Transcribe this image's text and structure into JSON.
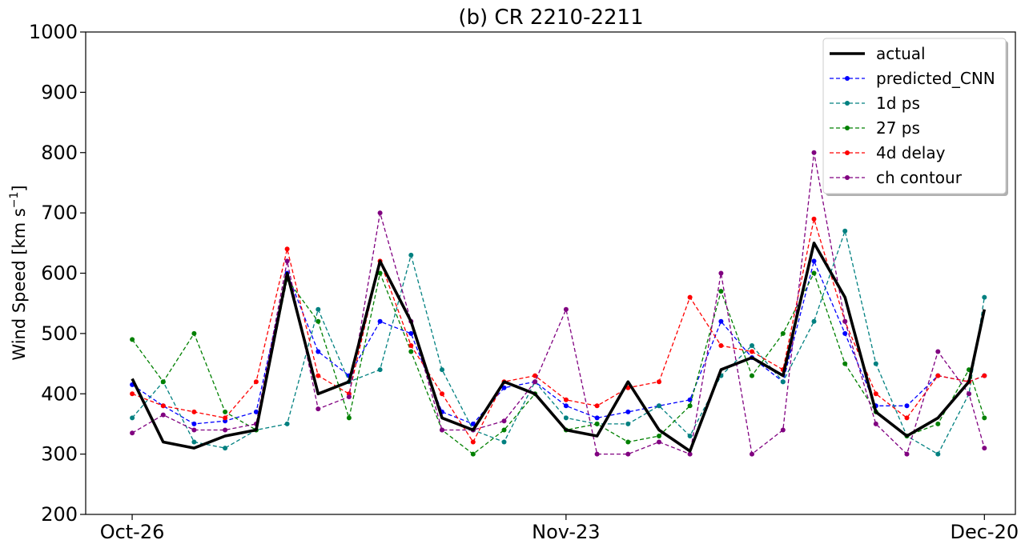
{
  "chart_data": {
    "type": "line",
    "title": "(b) CR 2210-2211",
    "xlabel": "",
    "ylabel": "Wind Speed [km s",
    "ylabel_sup": "−1",
    "ylabel_close": "]",
    "x": [
      "2019-10-26",
      "2019-10-28",
      "2019-10-30",
      "2019-11-01",
      "2019-11-03",
      "2019-11-05",
      "2019-11-07",
      "2019-11-09",
      "2019-11-11",
      "2019-11-13",
      "2019-11-15",
      "2019-11-17",
      "2019-11-19",
      "2019-11-21",
      "2019-11-23",
      "2019-11-25",
      "2019-11-27",
      "2019-11-29",
      "2019-12-01",
      "2019-12-03",
      "2019-12-05",
      "2019-12-07",
      "2019-12-09",
      "2019-12-11",
      "2019-12-13",
      "2019-12-15",
      "2019-12-17",
      "2019-12-19",
      "2019-12-20"
    ],
    "x_ticks": [
      "2019-10-26",
      "2019-11-23",
      "2019-12-20"
    ],
    "x_tick_labels": [
      "Oct-26",
      "Nov-23",
      "Dec-20"
    ],
    "xlim": [
      "2019-10-23",
      "2019-12-22"
    ],
    "ylim": [
      200,
      1000
    ],
    "y_ticks": [
      200,
      300,
      400,
      500,
      600,
      700,
      800,
      900,
      1000
    ],
    "grid": false,
    "legend_position": "top-right",
    "series": [
      {
        "name": "actual",
        "color": "#000000",
        "style": "solid",
        "marker": false,
        "values": [
          425,
          320,
          310,
          330,
          340,
          600,
          400,
          420,
          620,
          520,
          360,
          340,
          420,
          400,
          340,
          330,
          420,
          340,
          305,
          440,
          460,
          430,
          650,
          560,
          370,
          330,
          360,
          420,
          540
        ]
      },
      {
        "name": "predicted_CNN",
        "color": "#0000ff",
        "style": "dashed",
        "marker": true,
        "values": [
          415,
          380,
          350,
          355,
          370,
          600,
          470,
          430,
          520,
          500,
          370,
          350,
          410,
          420,
          380,
          360,
          370,
          380,
          390,
          520,
          460,
          420,
          620,
          500,
          380,
          380,
          430,
          420,
          430
        ]
      },
      {
        "name": "1d ps",
        "color": "#008080",
        "style": "dashed",
        "marker": true,
        "values": [
          360,
          420,
          320,
          310,
          340,
          350,
          540,
          420,
          440,
          630,
          440,
          340,
          320,
          420,
          360,
          350,
          350,
          380,
          330,
          430,
          480,
          420,
          520,
          670,
          450,
          330,
          300,
          400,
          560
        ]
      },
      {
        "name": "27 ps",
        "color": "#008000",
        "style": "dashed",
        "marker": true,
        "values": [
          490,
          420,
          500,
          370,
          340,
          590,
          520,
          360,
          600,
          470,
          340,
          300,
          340,
          400,
          340,
          350,
          320,
          330,
          380,
          570,
          430,
          500,
          600,
          450,
          370,
          330,
          350,
          440,
          360
        ]
      },
      {
        "name": "4d delay",
        "color": "#ff0000",
        "style": "dashed",
        "marker": true,
        "values": [
          400,
          380,
          370,
          360,
          420,
          640,
          430,
          400,
          620,
          480,
          400,
          320,
          420,
          430,
          390,
          380,
          410,
          420,
          560,
          480,
          470,
          440,
          690,
          520,
          400,
          360,
          430,
          420,
          430
        ]
      },
      {
        "name": "ch contour",
        "color": "#800080",
        "style": "dashed",
        "marker": true,
        "values": [
          335,
          365,
          340,
          340,
          350,
          620,
          375,
          395,
          700,
          520,
          340,
          340,
          355,
          420,
          540,
          300,
          300,
          320,
          300,
          600,
          300,
          340,
          800,
          520,
          350,
          300,
          470,
          400,
          310
        ]
      }
    ]
  }
}
